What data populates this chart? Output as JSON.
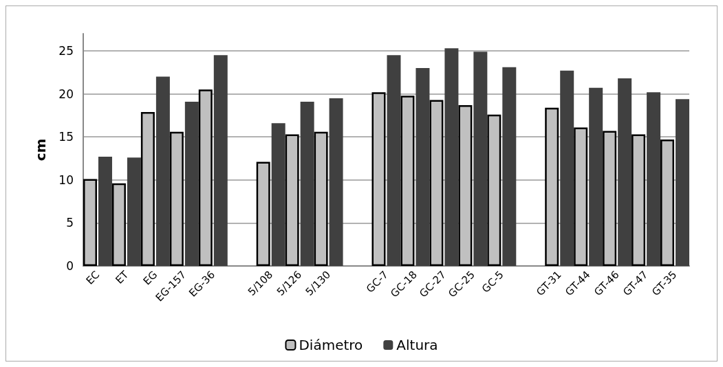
{
  "chart_data": {
    "type": "bar",
    "ylabel": "cm",
    "categories": [
      "EC",
      "ET",
      "EG",
      "EG-157",
      "EG-36",
      null,
      "5/108",
      "5/126",
      "5/130",
      null,
      "GC-7",
      "GC-18",
      "GC-27",
      "GC-25",
      "GC-5",
      null,
      "GT-31",
      "GT-44",
      "GT-46",
      "GT-47",
      "GT-35"
    ],
    "series": [
      {
        "name": "Diámetro",
        "color": "#c0c0c0",
        "values": [
          10.1,
          9.6,
          17.9,
          15.6,
          20.5,
          null,
          12.1,
          15.3,
          15.6,
          null,
          20.2,
          19.8,
          19.3,
          18.7,
          17.6,
          null,
          18.4,
          16.1,
          15.7,
          15.3,
          14.7
        ]
      },
      {
        "name": "Altura",
        "color": "#404040",
        "values": [
          12.7,
          12.6,
          22.0,
          19.1,
          24.5,
          null,
          16.6,
          19.1,
          19.5,
          null,
          24.5,
          23.0,
          25.3,
          24.9,
          23.1,
          null,
          22.7,
          20.7,
          21.8,
          20.2,
          19.4
        ]
      }
    ],
    "ylim": [
      0,
      27
    ],
    "yticks": [
      0,
      5,
      10,
      15,
      20,
      25
    ],
    "grid": "y",
    "legend": "bottom"
  }
}
